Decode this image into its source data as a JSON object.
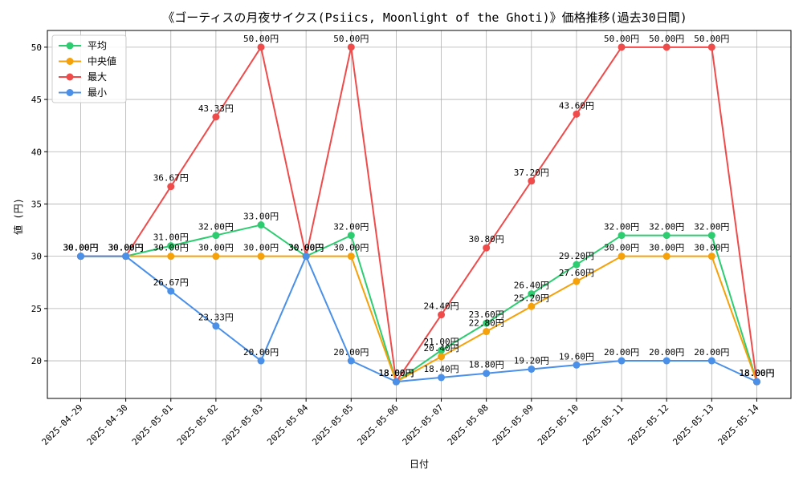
{
  "chart_data": {
    "type": "line",
    "title": "《ゴーティスの月夜サイクス(Psiics, Moonlight of the Ghoti)》価格推移(過去30日間)",
    "xlabel": "日付",
    "ylabel": "値 (円)",
    "ylim": [
      16.4,
      51.6
    ],
    "yticks": [
      20,
      25,
      30,
      35,
      40,
      45,
      50
    ],
    "grid": true,
    "legend_position": "top-left",
    "value_suffix": "円",
    "categories": [
      "2025-04-29",
      "2025-04-30",
      "2025-05-01",
      "2025-05-02",
      "2025-05-03",
      "2025-05-04",
      "2025-05-05",
      "2025-05-06",
      "2025-05-07",
      "2025-05-08",
      "2025-05-09",
      "2025-05-10",
      "2025-05-11",
      "2025-05-12",
      "2025-05-13",
      "2025-05-14"
    ],
    "series": [
      {
        "name": "平均",
        "color": "#2ecc71",
        "values": [
          30.0,
          30.0,
          31.0,
          32.0,
          33.0,
          30.0,
          32.0,
          18.0,
          21.0,
          23.6,
          26.4,
          29.2,
          32.0,
          32.0,
          32.0,
          18.0
        ]
      },
      {
        "name": "中央値",
        "color": "#f5a10a",
        "values": [
          30.0,
          30.0,
          30.0,
          30.0,
          30.0,
          30.0,
          30.0,
          18.0,
          20.4,
          22.8,
          25.2,
          27.6,
          30.0,
          30.0,
          30.0,
          18.0
        ]
      },
      {
        "name": "最大",
        "color": "#ef4b4b",
        "values": [
          30.0,
          30.0,
          36.67,
          43.33,
          50.0,
          30.0,
          50.0,
          18.0,
          24.4,
          30.8,
          37.2,
          43.6,
          50.0,
          50.0,
          50.0,
          18.0
        ]
      },
      {
        "name": "最小",
        "color": "#4a90e8",
        "values": [
          30.0,
          30.0,
          26.67,
          23.33,
          20.0,
          30.0,
          20.0,
          18.0,
          18.4,
          18.8,
          19.2,
          19.6,
          20.0,
          20.0,
          20.0,
          18.0
        ]
      }
    ]
  }
}
